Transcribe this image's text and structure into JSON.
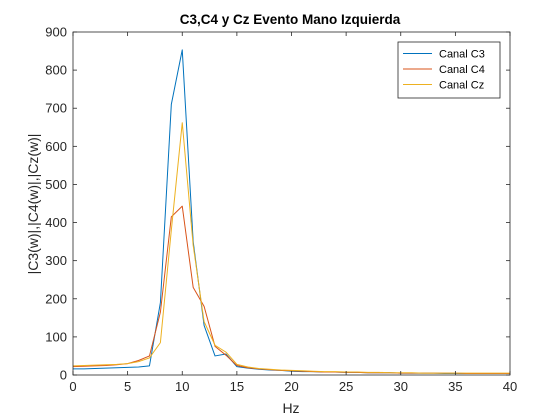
{
  "chart_data": {
    "type": "line",
    "title": "C3,C4 y Cz Evento Mano Izquierda",
    "xlabel": "Hz",
    "ylabel": "|C3(w)|,|C4(w)|,|Cz(w)|",
    "xlim": [
      0,
      40
    ],
    "ylim": [
      0,
      900
    ],
    "xticks": [
      0,
      5,
      10,
      15,
      20,
      25,
      30,
      35,
      40
    ],
    "yticks": [
      0,
      100,
      200,
      300,
      400,
      500,
      600,
      700,
      800,
      900
    ],
    "grid": false,
    "legend_position": "top-right",
    "x": [
      0,
      1,
      2,
      3,
      4,
      5,
      6,
      7,
      8,
      9,
      10,
      11,
      12,
      13,
      14,
      15,
      16,
      17,
      18,
      19,
      20,
      21,
      22,
      23,
      24,
      25,
      26,
      27,
      28,
      29,
      30,
      31,
      32,
      33,
      34,
      35,
      36,
      37,
      38,
      39,
      40
    ],
    "series": [
      {
        "name": "Canal C3",
        "color": "#0072BD",
        "values": [
          16,
          16,
          17,
          18,
          19,
          20,
          21,
          24,
          190,
          710,
          853,
          350,
          130,
          50,
          55,
          22,
          18,
          15,
          13,
          12,
          10,
          9,
          9,
          8,
          8,
          7,
          7,
          6,
          6,
          6,
          5,
          5,
          5,
          5,
          4,
          4,
          4,
          4,
          4,
          4,
          4
        ]
      },
      {
        "name": "Canal C4",
        "color": "#D95319",
        "values": [
          22,
          23,
          24,
          25,
          27,
          30,
          38,
          50,
          165,
          415,
          443,
          230,
          180,
          75,
          52,
          25,
          19,
          16,
          14,
          12,
          11,
          10,
          9,
          8,
          8,
          7,
          7,
          6,
          6,
          6,
          5,
          5,
          5,
          5,
          5,
          5,
          4,
          4,
          4,
          4,
          4
        ]
      },
      {
        "name": "Canal Cz",
        "color": "#EDB120",
        "values": [
          24,
          25,
          26,
          27,
          28,
          30,
          35,
          45,
          85,
          380,
          662,
          340,
          140,
          78,
          60,
          28,
          21,
          17,
          15,
          13,
          12,
          11,
          10,
          9,
          9,
          8,
          8,
          7,
          7,
          6,
          6,
          6,
          5,
          5,
          5,
          5,
          5,
          5,
          5,
          5,
          5
        ]
      }
    ]
  }
}
